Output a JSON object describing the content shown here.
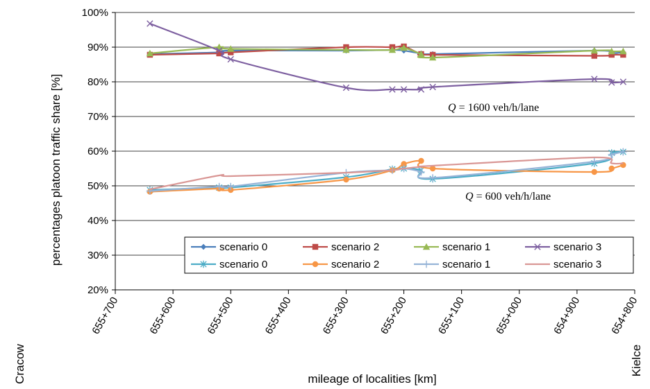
{
  "chart_data": {
    "type": "line",
    "xlabel": "mileage of localities [km]",
    "ylabel": "percentages platoon traffic share   [%]",
    "ylim": [
      20,
      100
    ],
    "yticks": [
      "20%",
      "30%",
      "40%",
      "50%",
      "60%",
      "70%",
      "80%",
      "90%",
      "100%"
    ],
    "xlim": [
      655700,
      654800
    ],
    "xticks": [
      "655+700",
      "655+600",
      "655+500",
      "655+400",
      "655+300",
      "655+200",
      "655+100",
      "655+000",
      "654+900",
      "654+800"
    ],
    "left_end_label": "Cracow",
    "right_end_label": "Kielce",
    "grid": "horizontal",
    "legend_position": "bottom-right",
    "annotations": [
      {
        "q": "Q",
        "text": " = 1600 veh/h/lane"
      },
      {
        "q": "Q",
        "text": " = 600 veh/h/lane"
      }
    ],
    "colors": {
      "scenario_0": "#4a7ebb",
      "scenario_2": "#be4b48",
      "scenario_1": "#98b954",
      "scenario_3": "#7d5fa0",
      "scenario_0_600": "#4bacc6",
      "scenario_2_600": "#f79646",
      "scenario_1_600": "#95b3d7",
      "scenario_3_600": "#d99694"
    },
    "series": [
      {
        "name": "scenario 0",
        "group": "Q = 1600 veh/h/lane",
        "marker": "diamond",
        "color": "#4a7ebb",
        "x": [
          655640,
          655520,
          655500,
          655300,
          655220,
          655200,
          655170,
          655150,
          654870,
          654840,
          654820
        ],
        "y": [
          88.0,
          88.5,
          89.0,
          89.0,
          89.2,
          89.0,
          88.2,
          88.0,
          89.0,
          88.3,
          88.5
        ]
      },
      {
        "name": "scenario 2",
        "group": "Q = 1600 veh/h/lane",
        "marker": "square",
        "color": "#be4b48",
        "x": [
          655640,
          655520,
          655500,
          655300,
          655220,
          655200,
          655170,
          655150,
          654870,
          654840,
          654820
        ],
        "y": [
          87.8,
          88.2,
          88.5,
          90.0,
          90.0,
          90.2,
          88.0,
          87.8,
          87.5,
          87.8,
          87.8
        ]
      },
      {
        "name": "scenario 1",
        "group": "Q = 1600 veh/h/lane",
        "marker": "triangle",
        "color": "#98b954",
        "x": [
          655640,
          655520,
          655500,
          655300,
          655220,
          655200,
          655170,
          655150,
          654870,
          654840,
          654820
        ],
        "y": [
          88.2,
          90.0,
          89.5,
          89.2,
          89.2,
          89.8,
          88.0,
          87.0,
          89.0,
          88.8,
          88.8
        ]
      },
      {
        "name": "scenario 3",
        "group": "Q = 1600 veh/h/lane",
        "marker": "x",
        "color": "#7d5fa0",
        "x": [
          655640,
          655520,
          655500,
          655300,
          655220,
          655200,
          655170,
          655150,
          654870,
          654840,
          654820
        ],
        "y": [
          96.8,
          89.0,
          86.5,
          78.3,
          77.8,
          77.8,
          77.8,
          78.5,
          80.8,
          79.8,
          80.0
        ]
      },
      {
        "name": "scenario 0",
        "group": "Q = 600 veh/h/lane",
        "marker": "asterisk",
        "color": "#4bacc6",
        "x": [
          655640,
          655520,
          655500,
          655300,
          655220,
          655200,
          655170,
          655150,
          654870,
          654840,
          654820
        ],
        "y": [
          48.8,
          49.5,
          49.5,
          52.5,
          54.8,
          55.0,
          54.5,
          52.0,
          56.5,
          59.5,
          59.8
        ]
      },
      {
        "name": "scenario 2",
        "group": "Q = 600 veh/h/lane",
        "marker": "circle",
        "color": "#f79646",
        "x": [
          655640,
          655520,
          655500,
          655300,
          655220,
          655200,
          655170,
          655150,
          654870,
          654840,
          654820
        ],
        "y": [
          48.3,
          49.2,
          48.8,
          51.8,
          54.5,
          56.3,
          57.2,
          55.0,
          54.0,
          55.0,
          56.0
        ]
      },
      {
        "name": "scenario 1",
        "group": "Q = 600 veh/h/lane",
        "marker": "plus",
        "color": "#95b3d7",
        "x": [
          655640,
          655520,
          655500,
          655300,
          655220,
          655200,
          655170,
          655150,
          654870,
          654840,
          654820
        ],
        "y": [
          48.5,
          49.8,
          49.8,
          53.8,
          54.5,
          55.0,
          54.0,
          52.3,
          57.0,
          59.0,
          59.8
        ]
      },
      {
        "name": "scenario 3",
        "group": "Q = 600 veh/h/lane",
        "marker": "none",
        "color": "#d99694",
        "x": [
          655640,
          655520,
          655500,
          655300,
          655220,
          655200,
          655170,
          655150,
          654870,
          654840,
          654820
        ],
        "y": [
          49.0,
          53.0,
          52.8,
          53.8,
          54.5,
          55.0,
          55.5,
          55.8,
          58.2,
          56.5,
          56.5
        ]
      }
    ]
  }
}
